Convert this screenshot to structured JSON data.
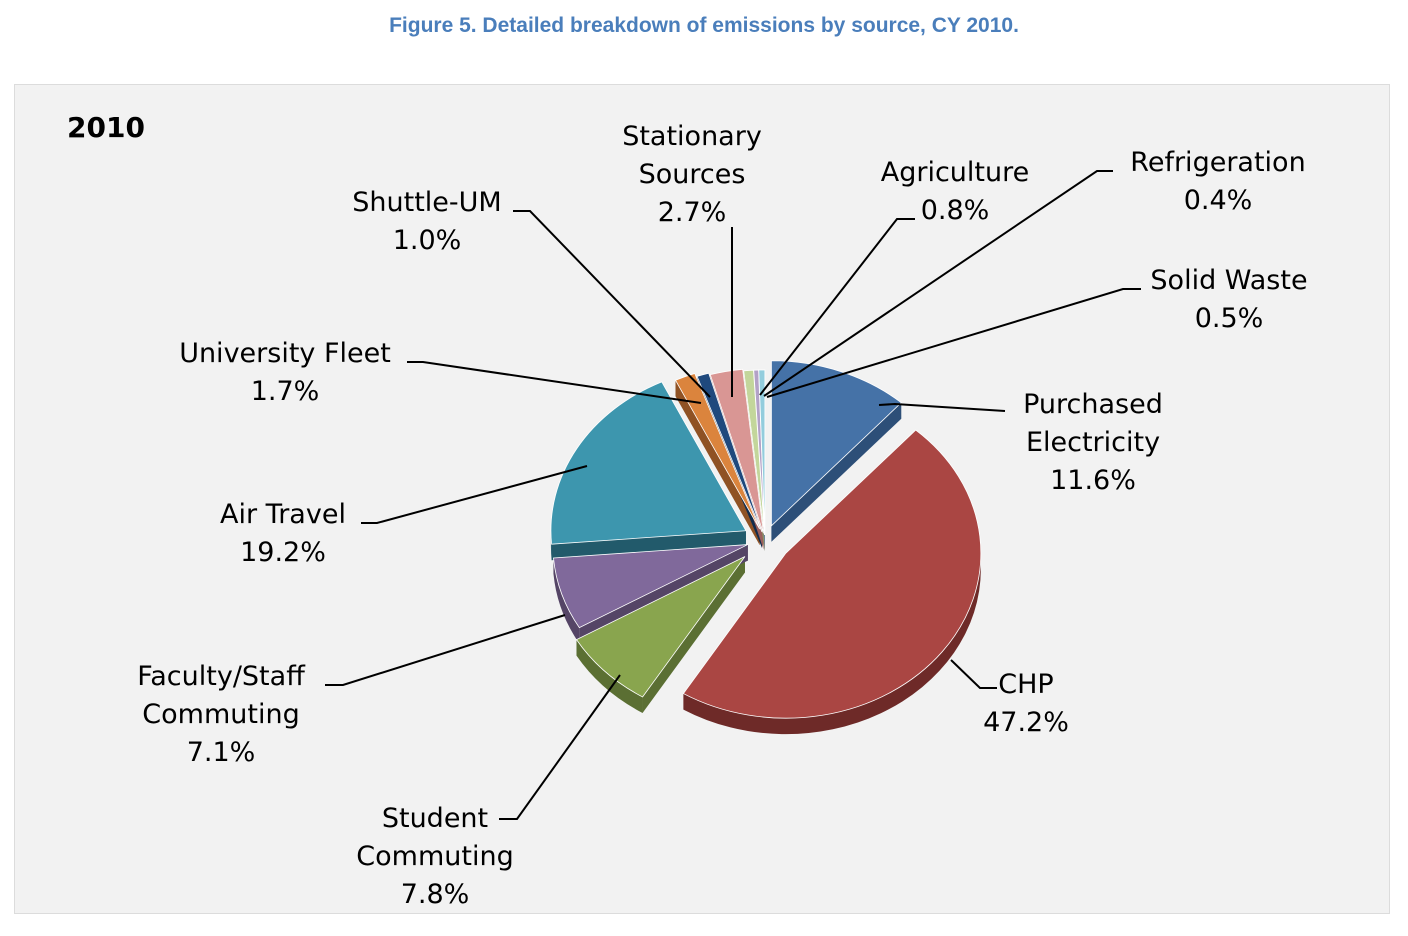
{
  "figure_title": "Figure 5. Detailed breakdown of emissions by source, CY 2010.",
  "chart_data": {
    "type": "pie",
    "title": "2010",
    "exploded_3d": true,
    "slices": [
      {
        "label_lines": [
          "Purchased",
          "Electricity"
        ],
        "percent_label": "11.6%",
        "value": 11.6,
        "color": "#4572a7",
        "side_color": "#2d4f78"
      },
      {
        "label_lines": [
          "CHP"
        ],
        "percent_label": "47.2%",
        "value": 47.2,
        "color": "#aa4643",
        "side_color": "#6e2a28"
      },
      {
        "label_lines": [
          "Student",
          "Commuting"
        ],
        "percent_label": "7.8%",
        "value": 7.8,
        "color": "#89a54e",
        "side_color": "#5b6f33"
      },
      {
        "label_lines": [
          "Faculty/Staff",
          "Commuting"
        ],
        "percent_label": "7.1%",
        "value": 7.1,
        "color": "#80699b",
        "side_color": "#554566"
      },
      {
        "label_lines": [
          "Air Travel"
        ],
        "percent_label": "19.2%",
        "value": 19.2,
        "color": "#3d96ae",
        "side_color": "#225a6b"
      },
      {
        "label_lines": [
          "University Fleet"
        ],
        "percent_label": "1.7%",
        "value": 1.7,
        "color": "#db843d",
        "side_color": "#8f5224"
      },
      {
        "label_lines": [
          "Shuttle-UM"
        ],
        "percent_label": "1.0%",
        "value": 1.0,
        "color": "#1f497d",
        "side_color": "#122c4c"
      },
      {
        "label_lines": [
          "Stationary",
          "Sources"
        ],
        "percent_label": "2.7%",
        "value": 2.7,
        "color": "#d99694",
        "side_color": "#9a5f5d"
      },
      {
        "label_lines": [
          "Agriculture"
        ],
        "percent_label": "0.8%",
        "value": 0.8,
        "color": "#c3d69b",
        "side_color": "#8a9c63"
      },
      {
        "label_lines": [
          "Refrigeration"
        ],
        "percent_label": "0.4%",
        "value": 0.4,
        "color": "#b3a2c7",
        "side_color": "#7a6b8f"
      },
      {
        "label_lines": [
          "Solid Waste"
        ],
        "percent_label": "0.5%",
        "value": 0.5,
        "color": "#93cddd",
        "side_color": "#5f95a4"
      }
    ]
  }
}
